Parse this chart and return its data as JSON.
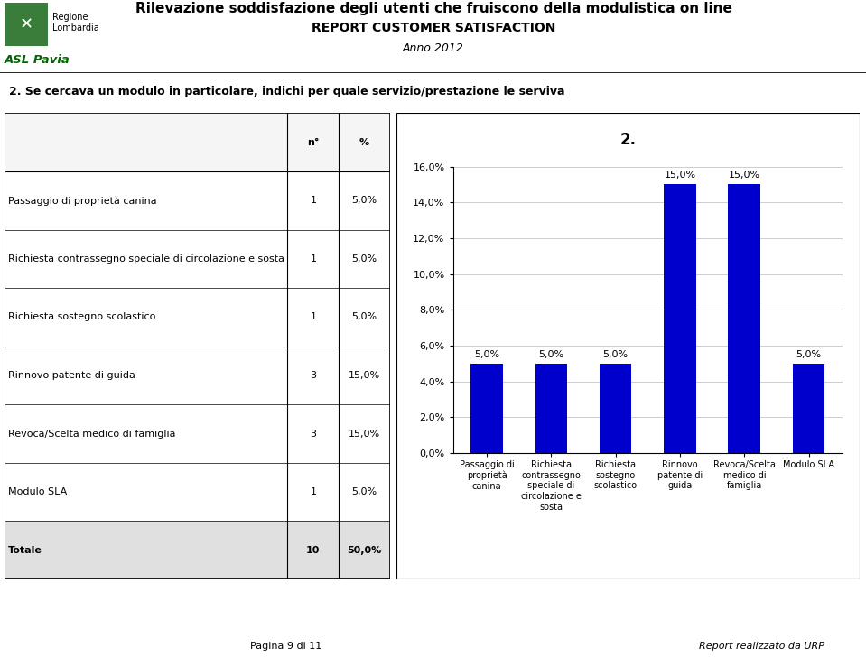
{
  "title_line1": "Rilevazione soddisfazione degli utenti che fruiscono della modulistica on line",
  "title_line2": "REPORT CUSTOMER SATISFACTION",
  "title_line3": "Anno 2012",
  "question": "2. Se cercava un modulo in particolare, indichi per quale servizio/prestazione le serviva",
  "table_headers": [
    "",
    "n°",
    "%"
  ],
  "table_rows": [
    [
      "Passaggio di proprietà canina",
      "1",
      "5,0%"
    ],
    [
      "Richiesta contrassegno speciale di circolazione e sosta",
      "1",
      "5,0%"
    ],
    [
      "Richiesta sostegno scolastico",
      "1",
      "5,0%"
    ],
    [
      "Rinnovo patente di guida",
      "3",
      "15,0%"
    ],
    [
      "Revoca/Scelta medico di famiglia",
      "3",
      "15,0%"
    ],
    [
      "Modulo SLA",
      "1",
      "5,0%"
    ],
    [
      "Totale",
      "10",
      "50,0%"
    ]
  ],
  "chart_title": "2.",
  "categories": [
    "Passaggio di\nproprietà\ncanina",
    "Richiesta\ncontrassegno\nspeciale di\ncircolazione e\nsosta",
    "Richiesta\nsostegno\nscolastico",
    "Rinnovo\npatente di\nguida",
    "Revoca/Scelta\nmedico di\nfamiglia",
    "Modulo SLA"
  ],
  "values": [
    5.0,
    5.0,
    5.0,
    15.0,
    15.0,
    5.0
  ],
  "bar_color": "#0000CC",
  "bar_labels": [
    "5,0%",
    "5,0%",
    "5,0%",
    "15,0%",
    "15,0%",
    "5,0%"
  ],
  "ylim_max": 16.0,
  "yticks": [
    0.0,
    2.0,
    4.0,
    6.0,
    8.0,
    10.0,
    12.0,
    14.0,
    16.0
  ],
  "ytick_labels": [
    "0,0%",
    "2,0%",
    "4,0%",
    "6,0%",
    "8,0%",
    "10,0%",
    "12,0%",
    "14,0%",
    "16,0%"
  ],
  "footer_left": "Pagina 9 di 11",
  "footer_right": "Report realizzato da URP",
  "title_fontsize": 11,
  "subtitle_fontsize": 10,
  "anno_fontsize": 9,
  "question_fontsize": 9,
  "table_label_fontsize": 8,
  "table_value_fontsize": 8,
  "bar_label_fontsize": 8,
  "ytick_fontsize": 8,
  "xtick_fontsize": 7,
  "footer_fontsize": 8
}
